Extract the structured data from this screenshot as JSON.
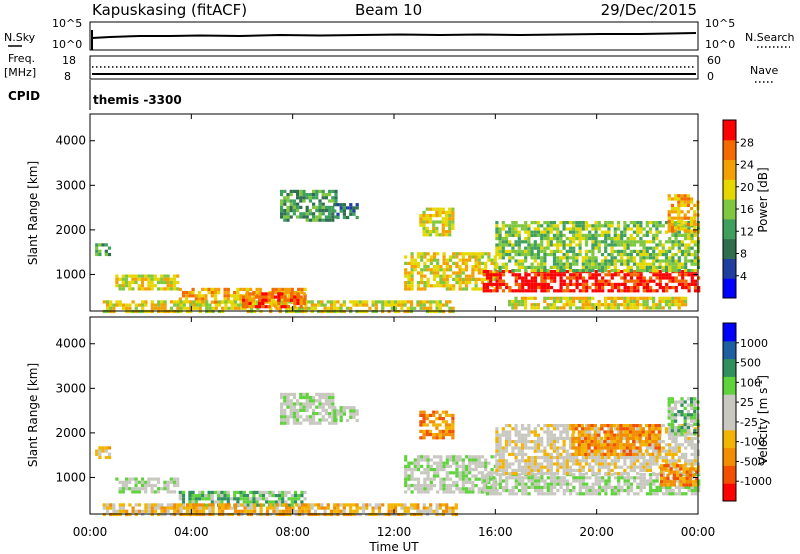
{
  "header": {
    "station": "Kapuskasing (fitACF)",
    "beam": "Beam 10",
    "date": "29/Dec/2015"
  },
  "noise_panel": {
    "left_label": "N.Sky",
    "right_label": "N.Search",
    "left_ticks": [
      "10^5",
      "10^0"
    ],
    "right_ticks": [
      "10^5",
      "10^0"
    ]
  },
  "freq_panel": {
    "left_label_top": "Freq.",
    "left_label_unit": "[MHz]",
    "left_ticks": [
      "18",
      "8"
    ],
    "right_label": "Nave",
    "right_ticks": [
      "60",
      "0"
    ]
  },
  "cpid_panel": {
    "label": "CPID",
    "value": "themis -3300"
  },
  "chart_data": [
    {
      "type": "heatmap",
      "name": "power",
      "ylabel": "Slant Range [km]",
      "xlabel": "Time UT",
      "ylim": [
        180,
        4600
      ],
      "xlim": [
        0,
        24
      ],
      "y_ticks": [
        "1000",
        "2000",
        "3000",
        "4000"
      ],
      "x_ticks": [
        "00:00",
        "04:00",
        "08:00",
        "12:00",
        "16:00",
        "20:00",
        "00:00"
      ],
      "colorbar": {
        "label": "Power [dB]",
        "ticks": [
          "28",
          "24",
          "20",
          "16",
          "12",
          "8",
          "4"
        ],
        "colors": [
          "#0000ff",
          "#1e3fa0",
          "#2f6f4f",
          "#3f9f5f",
          "#7fc73f",
          "#e6d700",
          "#f2a100",
          "#f26a00",
          "#ff0000"
        ]
      },
      "regions": [
        {
          "t0": 0.2,
          "t1": 0.8,
          "r0": 1450,
          "r1": 1700,
          "level": 3
        },
        {
          "t0": 1.0,
          "t1": 3.5,
          "r0": 650,
          "r1": 1000,
          "level": 5
        },
        {
          "t0": 3.5,
          "t1": 8.5,
          "r0": 400,
          "r1": 700,
          "level": 6
        },
        {
          "t0": 0.5,
          "t1": 14.5,
          "r0": 180,
          "r1": 420,
          "level": 5
        },
        {
          "t0": 6.0,
          "t1": 8.5,
          "r0": 250,
          "r1": 600,
          "level": 7
        },
        {
          "t0": 7.5,
          "t1": 9.7,
          "r0": 2200,
          "r1": 2900,
          "level": 3
        },
        {
          "t0": 9.6,
          "t1": 10.5,
          "r0": 2300,
          "r1": 2600,
          "level": 2
        },
        {
          "t0": 13.0,
          "t1": 14.3,
          "r0": 1900,
          "r1": 2500,
          "level": 5
        },
        {
          "t0": 12.4,
          "t1": 16.0,
          "r0": 700,
          "r1": 1500,
          "level": 5
        },
        {
          "t0": 15.5,
          "t1": 24.0,
          "r0": 600,
          "r1": 1100,
          "level": 8
        },
        {
          "t0": 16.0,
          "t1": 24.0,
          "r0": 1100,
          "r1": 2200,
          "level": 4
        },
        {
          "t0": 16.5,
          "t1": 23.5,
          "r0": 250,
          "r1": 500,
          "level": 5
        },
        {
          "t0": 22.8,
          "t1": 24.0,
          "r0": 2000,
          "r1": 2800,
          "level": 6
        }
      ]
    },
    {
      "type": "heatmap",
      "name": "velocity",
      "ylabel": "Slant Range [km]",
      "xlabel": "Time UT",
      "ylim": [
        180,
        4600
      ],
      "xlim": [
        0,
        24
      ],
      "y_ticks": [
        "1000",
        "2000",
        "3000",
        "4000"
      ],
      "x_ticks": [
        "00:00",
        "04:00",
        "08:00",
        "12:00",
        "16:00",
        "20:00",
        "00:00"
      ],
      "colorbar": {
        "label": "Velocity [m s^-1]",
        "unit_base": "Velocity [m s",
        "unit_exp": "-1",
        "unit_close": "]",
        "ticks": [
          "1000",
          "500",
          "100",
          "25",
          "-25",
          "-100",
          "-500",
          "-1000"
        ],
        "colors": [
          "#ff0000",
          "#f25000",
          "#f28c00",
          "#f2b400",
          "#c8c8c0",
          "#c8c8c0",
          "#5fd23c",
          "#2f8f5f",
          "#1e5fa0",
          "#0000ff"
        ]
      },
      "regions": [
        {
          "t0": 0.2,
          "t1": 0.8,
          "r0": 1450,
          "r1": 1700,
          "level": 3
        },
        {
          "t0": 1.0,
          "t1": 3.5,
          "r0": 650,
          "r1": 1000,
          "level": 5
        },
        {
          "t0": 3.5,
          "t1": 8.5,
          "r0": 400,
          "r1": 700,
          "level": 6
        },
        {
          "t0": 0.5,
          "t1": 14.5,
          "r0": 180,
          "r1": 420,
          "level": 3
        },
        {
          "t0": 7.5,
          "t1": 9.7,
          "r0": 2200,
          "r1": 2900,
          "level": 5
        },
        {
          "t0": 9.6,
          "t1": 10.5,
          "r0": 2300,
          "r1": 2600,
          "level": 5
        },
        {
          "t0": 13.0,
          "t1": 14.3,
          "r0": 1900,
          "r1": 2500,
          "level": 2
        },
        {
          "t0": 12.4,
          "t1": 16.0,
          "r0": 700,
          "r1": 1500,
          "level": 5
        },
        {
          "t0": 15.5,
          "t1": 24.0,
          "r0": 600,
          "r1": 1100,
          "level": 5
        },
        {
          "t0": 16.0,
          "t1": 24.0,
          "r0": 1100,
          "r1": 2200,
          "level": 4
        },
        {
          "t0": 19.0,
          "t1": 22.5,
          "r0": 1500,
          "r1": 2200,
          "level": 2
        },
        {
          "t0": 22.5,
          "t1": 24.0,
          "r0": 800,
          "r1": 1300,
          "level": 2
        },
        {
          "t0": 22.8,
          "t1": 24.0,
          "r0": 2000,
          "r1": 2800,
          "level": 6
        }
      ]
    }
  ]
}
